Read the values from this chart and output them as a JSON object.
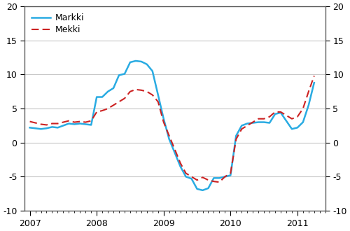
{
  "markki_x": [
    2007.0,
    2007.083,
    2007.167,
    2007.25,
    2007.333,
    2007.417,
    2007.5,
    2007.583,
    2007.667,
    2007.75,
    2007.833,
    2007.917,
    2008.0,
    2008.083,
    2008.167,
    2008.25,
    2008.333,
    2008.417,
    2008.5,
    2008.583,
    2008.667,
    2008.75,
    2008.833,
    2008.917,
    2009.0,
    2009.083,
    2009.167,
    2009.25,
    2009.333,
    2009.417,
    2009.5,
    2009.583,
    2009.667,
    2009.75,
    2009.833,
    2009.917,
    2010.0,
    2010.083,
    2010.167,
    2010.25,
    2010.333,
    2010.417,
    2010.5,
    2010.583,
    2010.667,
    2010.75,
    2010.833,
    2010.917,
    2011.0,
    2011.083,
    2011.167,
    2011.25
  ],
  "markki_y": [
    2.2,
    2.1,
    2.0,
    2.1,
    2.3,
    2.2,
    2.5,
    2.8,
    2.7,
    2.8,
    2.7,
    2.6,
    6.7,
    6.7,
    7.5,
    8.0,
    9.9,
    10.1,
    11.8,
    12.0,
    11.9,
    11.5,
    10.5,
    7.0,
    3.5,
    0.5,
    -1.5,
    -3.5,
    -5.0,
    -5.3,
    -6.8,
    -7.0,
    -6.7,
    -5.2,
    -5.2,
    -5.0,
    -4.8,
    1.0,
    2.5,
    2.8,
    2.9,
    3.0,
    3.0,
    2.9,
    4.2,
    4.4,
    3.2,
    2.0,
    2.2,
    3.0,
    5.5,
    8.8
  ],
  "mekki_x": [
    2007.0,
    2007.083,
    2007.167,
    2007.25,
    2007.333,
    2007.417,
    2007.5,
    2007.583,
    2007.667,
    2007.75,
    2007.833,
    2007.917,
    2008.0,
    2008.083,
    2008.167,
    2008.25,
    2008.333,
    2008.417,
    2008.5,
    2008.583,
    2008.667,
    2008.75,
    2008.833,
    2008.917,
    2009.0,
    2009.083,
    2009.167,
    2009.25,
    2009.333,
    2009.417,
    2009.5,
    2009.583,
    2009.667,
    2009.75,
    2009.833,
    2009.917,
    2010.0,
    2010.083,
    2010.167,
    2010.25,
    2010.333,
    2010.417,
    2010.5,
    2010.583,
    2010.667,
    2010.75,
    2010.833,
    2010.917,
    2011.0,
    2011.083,
    2011.167,
    2011.25
  ],
  "mekki_y": [
    3.1,
    2.9,
    2.7,
    2.6,
    2.8,
    2.8,
    3.0,
    3.2,
    3.0,
    3.1,
    3.0,
    3.2,
    4.5,
    4.7,
    5.0,
    5.5,
    6.0,
    6.5,
    7.5,
    7.8,
    7.7,
    7.5,
    7.0,
    6.0,
    3.0,
    1.0,
    -1.0,
    -3.0,
    -4.5,
    -5.0,
    -5.5,
    -5.1,
    -5.5,
    -5.7,
    -5.8,
    -5.0,
    -4.5,
    0.5,
    2.0,
    2.5,
    3.0,
    3.5,
    3.5,
    3.8,
    4.5,
    4.5,
    4.0,
    3.5,
    3.8,
    5.0,
    7.5,
    9.8
  ],
  "markki_color": "#29ABE2",
  "mekki_color": "#CC2222",
  "ylim": [
    -10,
    20
  ],
  "yticks": [
    -10,
    -5,
    0,
    5,
    10,
    15,
    20
  ],
  "xticks": [
    2007,
    2008,
    2009,
    2010,
    2011
  ],
  "xlim": [
    2006.92,
    2011.42
  ],
  "background_color": "#ffffff",
  "grid_color": "#c8c8c8",
  "spine_color": "#555555",
  "tick_fontsize": 9,
  "legend_fontsize": 9
}
